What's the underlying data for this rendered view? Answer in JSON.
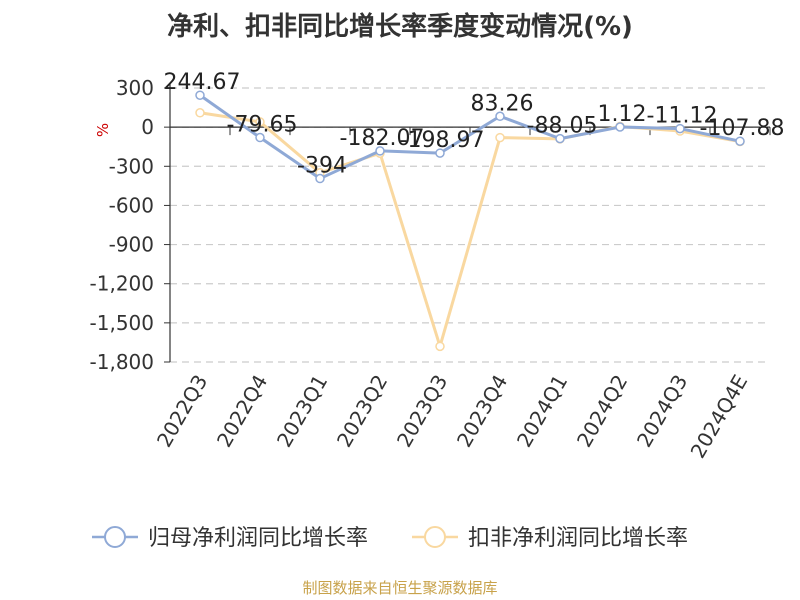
{
  "chart_data": {
    "type": "line",
    "title": "净利、扣非同比增长率季度变动情况(%)",
    "ylabel": "%",
    "xlabel": "",
    "ylim": [
      -1800,
      300
    ],
    "yticks": [
      300,
      0,
      -300,
      -600,
      -900,
      -1200,
      -1500,
      -1800
    ],
    "ytick_labels": [
      "300",
      "0",
      "-300",
      "-600",
      "-900",
      "-1,200",
      "-1,500",
      "-1,800"
    ],
    "categories": [
      "2022Q3",
      "2022Q4",
      "2023Q1",
      "2023Q2",
      "2023Q3",
      "2023Q4",
      "2024Q1",
      "2024Q2",
      "2024Q3",
      "2024Q4E"
    ],
    "grid": true,
    "legend_position": "bottom",
    "series": [
      {
        "name": "归母净利润同比增长率",
        "color": "#8fa9d6",
        "values": [
          244.67,
          -79.65,
          -394,
          -182.07,
          -198.97,
          83.26,
          -88.05,
          1.12,
          -11.12,
          -107.88
        ],
        "labels": [
          "244.67",
          "-79.65",
          "-394",
          "-182.07",
          "-198.97",
          "83.26",
          "-88.05",
          "1.12",
          "-11.12",
          "-107.88"
        ]
      },
      {
        "name": "扣非净利润同比增长率",
        "color": "#f9d8a0",
        "values": [
          110,
          40,
          -350,
          -200,
          -1680,
          -80,
          -90,
          5,
          -30,
          -110
        ],
        "labels": []
      }
    ]
  },
  "footer": {
    "source": "制图数据来自恒生聚源数据库"
  }
}
